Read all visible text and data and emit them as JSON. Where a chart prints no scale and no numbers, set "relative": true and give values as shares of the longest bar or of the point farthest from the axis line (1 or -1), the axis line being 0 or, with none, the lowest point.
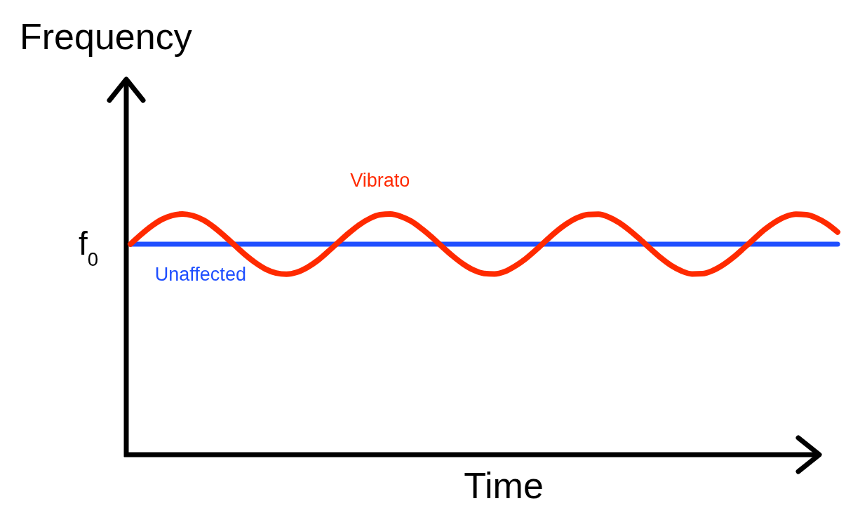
{
  "chart_data": {
    "type": "line",
    "relative": true,
    "xlabel": "Time",
    "ylabel": "Frequency",
    "annotations": [
      "f$_{0}$"
    ],
    "line_style": "solid",
    "categories": [
      null,
      null,
      null,
      null,
      null,
      null,
      null,
      null,
      null,
      null,
      null,
      null,
      null,
      null,
      null,
      null,
      null,
      null,
      null,
      null,
      null,
      null,
      null,
      null,
      null,
      null,
      null,
      null,
      null,
      null,
      null,
      null,
      null,
      null,
      null,
      null,
      null,
      null,
      null,
      null,
      null,
      null,
      null,
      null,
      null,
      null,
      null,
      null,
      null,
      null,
      null,
      null,
      null,
      null,
      null,
      null,
      null,
      null,
      null,
      null,
      null,
      null,
      null,
      null,
      null,
      null,
      null,
      null,
      null
    ],
    "series": [
      {
        "name": "Unaffected",
        "color": "#1f4fff",
        "values": [
          0.875,
          0.875,
          0.875,
          0.875,
          0.875,
          0.875,
          0.875,
          0.875,
          0.875,
          0.875,
          0.875,
          0.875,
          0.875,
          0.875,
          0.875,
          0.875,
          0.875,
          0.875,
          0.875,
          0.875,
          0.875,
          0.875,
          0.875,
          0.875,
          0.875,
          0.875,
          0.875,
          0.875,
          0.875,
          0.875,
          0.875,
          0.875,
          0.875,
          0.875,
          0.875,
          0.875,
          0.875,
          0.875,
          0.875,
          0.875,
          0.875,
          0.875,
          0.875,
          0.875,
          0.875,
          0.875,
          0.875,
          0.875,
          0.875,
          0.875,
          0.875,
          0.875,
          0.875,
          0.875,
          0.875,
          0.875,
          0.875,
          0.875,
          0.875,
          0.875,
          0.875,
          0.875,
          0.875,
          0.875,
          0.875,
          0.875,
          0.875,
          0.875,
          0.875
        ]
      },
      {
        "name": "Vibrato",
        "color": "#ff2a00",
        "values": [
          0.875,
          0.914,
          0.949,
          0.977,
          0.994,
          1.0,
          0.993,
          0.975,
          0.946,
          0.91,
          0.871,
          0.832,
          0.798,
          0.771,
          0.755,
          0.75,
          0.758,
          0.778,
          0.807,
          0.844,
          0.883,
          0.921,
          0.955,
          0.981,
          0.997,
          1.0,
          0.99,
          0.97,
          0.939,
          0.903,
          0.863,
          0.825,
          0.792,
          0.767,
          0.753,
          0.751,
          0.761,
          0.784,
          0.814,
          0.851,
          0.891,
          0.929,
          0.961,
          0.985,
          0.998,
          0.999,
          0.987,
          0.964,
          0.932,
          0.895,
          0.856,
          0.818,
          0.786,
          0.763,
          0.751,
          0.752,
          0.765,
          0.789,
          0.821,
          0.859,
          0.898,
          0.936,
          0.967,
          0.989,
          0.999,
          0.997,
          0.983,
          0.959,
          0.925
        ]
      }
    ]
  }
}
